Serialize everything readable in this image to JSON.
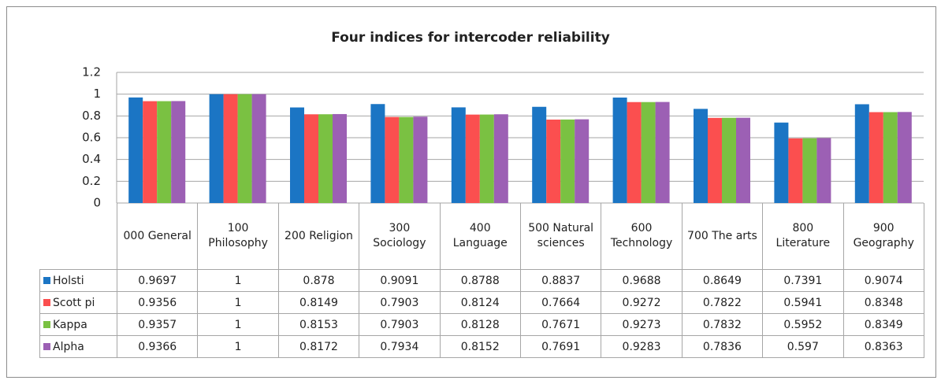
{
  "chart_data": {
    "type": "bar",
    "title": "Four indices for intercoder reliability",
    "categories": [
      "000 General",
      "100 Philosophy",
      "200 Religion",
      "300 Sociology",
      "400 Language",
      "500 Natural sciences",
      "600 Technology",
      "700 The arts",
      "800 Literature",
      "900 Geography"
    ],
    "series": [
      {
        "name": "Holsti",
        "color": "#1b75c4",
        "values": [
          0.9697,
          1,
          0.878,
          0.9091,
          0.8788,
          0.8837,
          0.9688,
          0.8649,
          0.7391,
          0.9074
        ]
      },
      {
        "name": "Scott pi",
        "color": "#fb4f4f",
        "values": [
          0.9356,
          1,
          0.8149,
          0.7903,
          0.8124,
          0.7664,
          0.9272,
          0.7822,
          0.5941,
          0.8348
        ]
      },
      {
        "name": "Kappa",
        "color": "#7ac142",
        "values": [
          0.9357,
          1,
          0.8153,
          0.7903,
          0.8128,
          0.7671,
          0.9273,
          0.7832,
          0.5952,
          0.8349
        ]
      },
      {
        "name": "Alpha",
        "color": "#9c60b4",
        "values": [
          0.9366,
          1,
          0.8172,
          0.7934,
          0.8152,
          0.7691,
          0.9283,
          0.7836,
          0.597,
          0.8363
        ]
      }
    ],
    "ylim": [
      0,
      1.2
    ],
    "yticks": [
      0,
      0.2,
      0.4,
      0.6,
      0.8,
      1,
      1.2
    ],
    "grid": true
  }
}
